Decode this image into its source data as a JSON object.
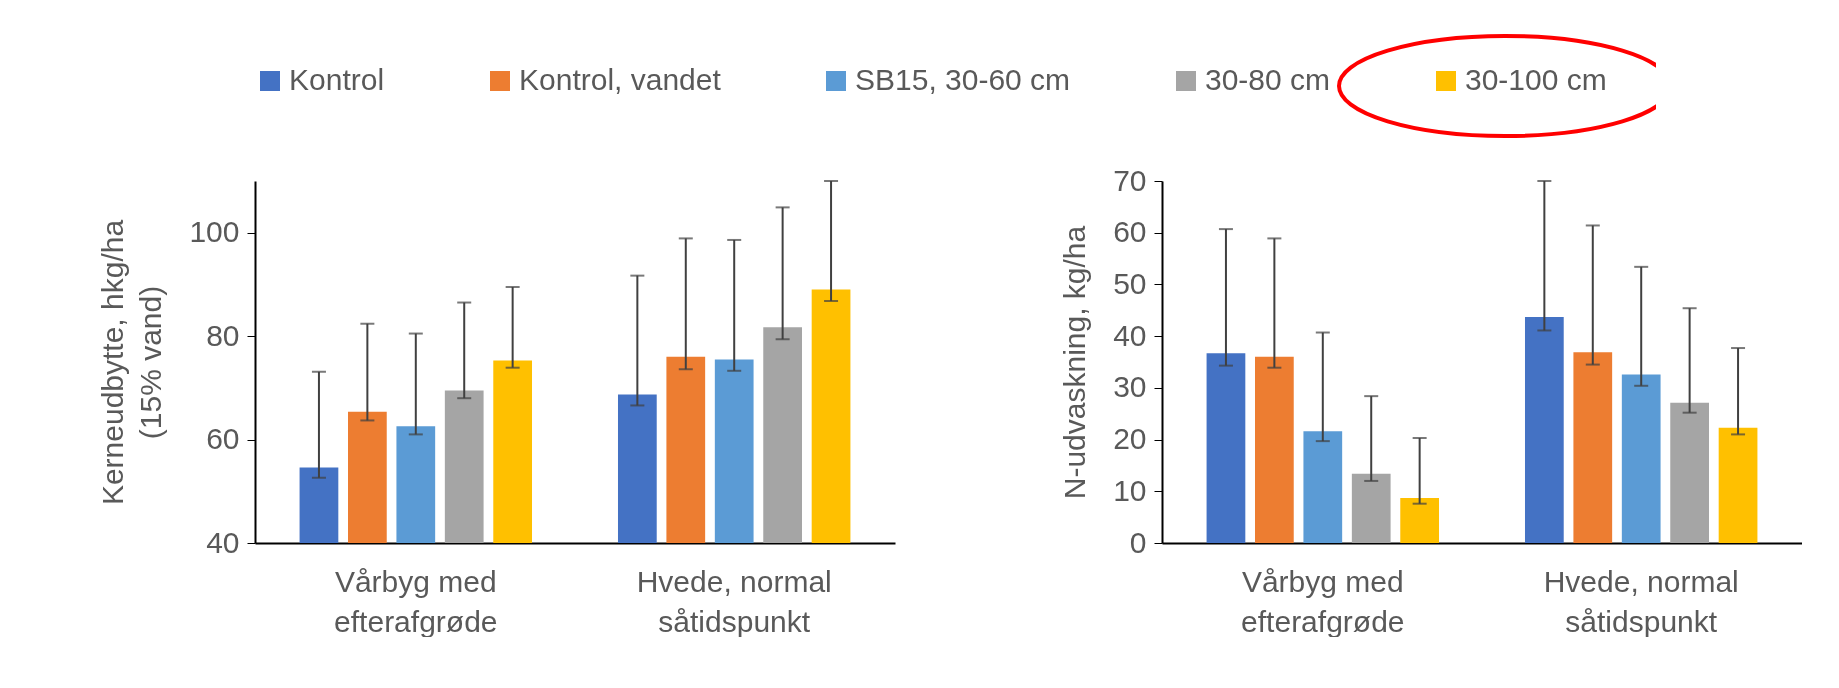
{
  "chart_data": [
    {
      "type": "bar",
      "categories": [
        "Vårbyg med\nefterafgrøde",
        "Hvede, normal\nsåtidspunkt"
      ],
      "ylabel": "Kerneudbytte, hkg/ha\n(15% vand)",
      "ylim": [
        40,
        110
      ],
      "yticks": [
        40,
        60,
        80,
        100
      ],
      "legend": "top",
      "series": [
        {
          "name": "Kontrol",
          "color": "#4472c4",
          "values": [
            54.6,
            68.7
          ],
          "errors": [
            [
              52.6,
              73.1
            ],
            [
              66.6,
              91.7
            ]
          ]
        },
        {
          "name": "Kontrol, vandet",
          "color": "#ed7d31",
          "values": [
            65.4,
            76.0
          ],
          "errors": [
            [
              63.7,
              82.4
            ],
            [
              73.6,
              98.9
            ]
          ]
        },
        {
          "name": "SB15, 30-60 cm",
          "color": "#5b9bd5",
          "values": [
            62.6,
            75.5
          ],
          "errors": [
            [
              61.0,
              80.5
            ],
            [
              73.3,
              98.6
            ]
          ]
        },
        {
          "name": "30-80 cm",
          "color": "#a5a5a5",
          "values": [
            69.5,
            81.7
          ],
          "errors": [
            [
              68.0,
              86.5
            ],
            [
              79.4,
              104.9
            ]
          ]
        },
        {
          "name": "30-100 cm",
          "color": "#ffc000",
          "values": [
            75.3,
            89.0
          ],
          "errors": [
            [
              73.9,
              89.5
            ],
            [
              86.8,
              110
            ]
          ]
        }
      ]
    },
    {
      "type": "bar",
      "categories": [
        "Vårbyg med\nefterafgrøde",
        "Hvede, normal\nsåtidspunkt"
      ],
      "ylabel": "N-udvaskning, kg/ha",
      "ylim": [
        0,
        70
      ],
      "yticks": [
        0,
        10,
        20,
        30,
        40,
        50,
        60,
        70
      ],
      "legend": "top",
      "series": [
        {
          "name": "Kontrol",
          "color": "#4472c4",
          "values": [
            36.7,
            43.7
          ],
          "errors": [
            [
              34.3,
              60.7
            ],
            [
              41.1,
              70
            ]
          ]
        },
        {
          "name": "Kontrol, vandet",
          "color": "#ed7d31",
          "values": [
            36.0,
            36.9
          ],
          "errors": [
            [
              33.9,
              58.9
            ],
            [
              34.5,
              61.4
            ]
          ]
        },
        {
          "name": "SB15, 30-60 cm",
          "color": "#5b9bd5",
          "values": [
            21.6,
            32.6
          ],
          "errors": [
            [
              19.7,
              40.7
            ],
            [
              30.4,
              53.4
            ]
          ]
        },
        {
          "name": "30-80 cm",
          "color": "#a5a5a5",
          "values": [
            13.4,
            27.1
          ],
          "errors": [
            [
              12.0,
              28.4
            ],
            [
              25.2,
              45.4
            ]
          ]
        },
        {
          "name": "30-100 cm",
          "color": "#ffc000",
          "values": [
            8.7,
            22.3
          ],
          "errors": [
            [
              7.6,
              20.3
            ],
            [
              21.0,
              37.7
            ]
          ]
        }
      ]
    }
  ]
}
